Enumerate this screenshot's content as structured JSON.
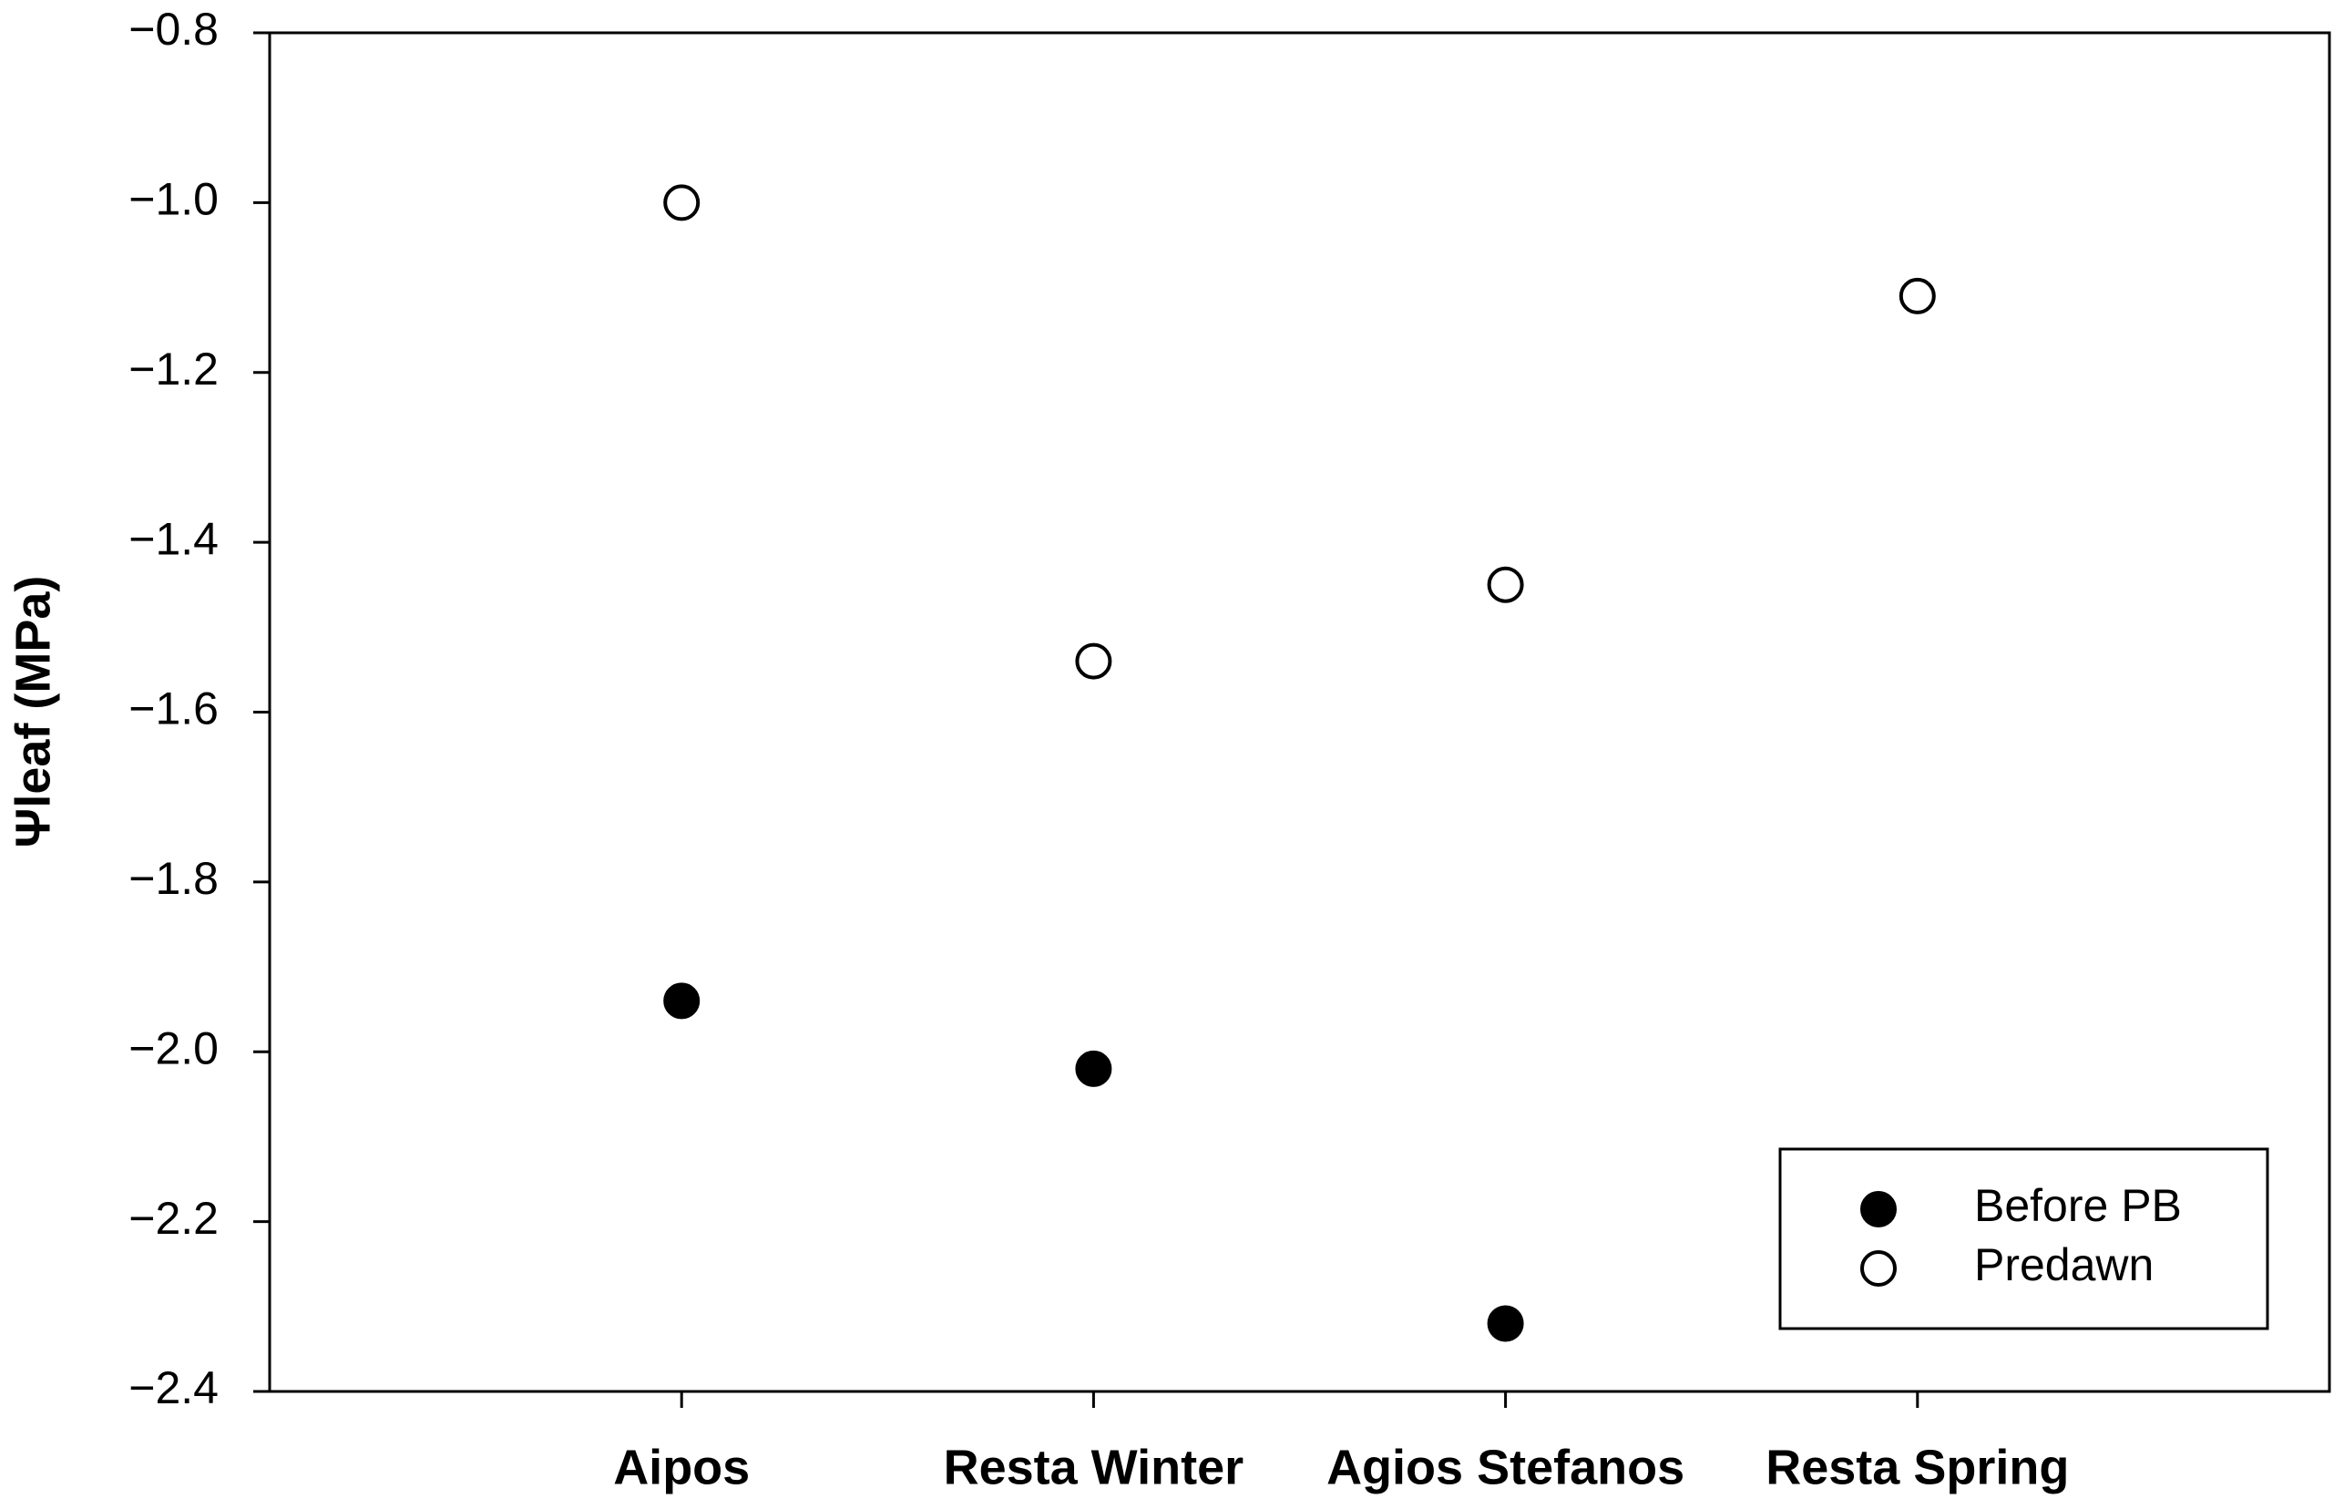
{
  "chart_data": {
    "type": "scatter",
    "ylabel": "Ψleaf (MPa)",
    "categories": [
      "Aipos",
      "Resta Winter",
      "Agios Stefanos",
      "Resta Spring"
    ],
    "series": [
      {
        "name": "Before PB",
        "color": "#000000",
        "filled": true,
        "values": [
          -1.94,
          -2.02,
          -2.32,
          null
        ]
      },
      {
        "name": "Predawn",
        "color": "#000000",
        "filled": false,
        "values": [
          -1.0,
          -1.54,
          -1.45,
          -1.11
        ]
      }
    ],
    "ylim": [
      -2.4,
      -0.8
    ],
    "yticks": [
      {
        "value": -2.4,
        "label": "−2.4"
      },
      {
        "value": -2.2,
        "label": "−2.2"
      },
      {
        "value": -2.0,
        "label": "−2.0"
      },
      {
        "value": -1.8,
        "label": "−1.8"
      },
      {
        "value": -1.6,
        "label": "−1.6"
      },
      {
        "value": -1.4,
        "label": "−1.4"
      },
      {
        "value": -1.2,
        "label": "−1.2"
      },
      {
        "value": -1.0,
        "label": "−1.0"
      },
      {
        "value": -0.8,
        "label": "−0.8"
      }
    ],
    "legend": "lower right"
  }
}
